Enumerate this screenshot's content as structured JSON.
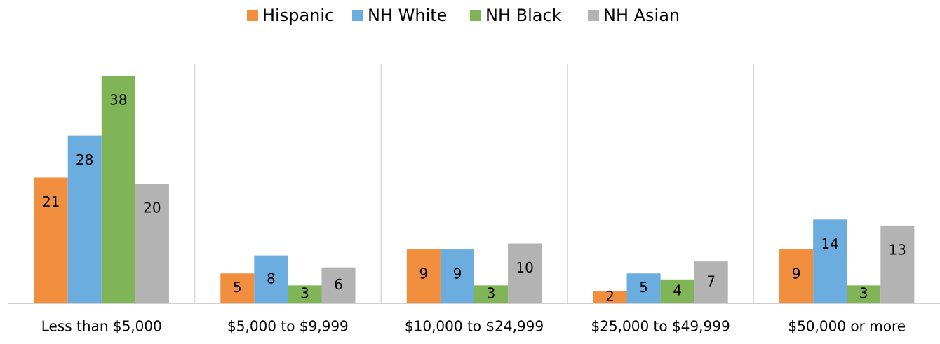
{
  "chart_data": {
    "type": "bar",
    "categories": [
      "Less than $5,000",
      "$5,000 to $9,999",
      "$10,000 to $24,999",
      "$25,000 to $49,999",
      "$50,000 or more"
    ],
    "series": [
      {
        "name": "Hispanic",
        "color": "#f28f3f",
        "values": [
          21,
          5,
          9,
          2,
          9
        ]
      },
      {
        "name": "NH White",
        "color": "#6badde",
        "values": [
          28,
          8,
          9,
          5,
          14
        ]
      },
      {
        "name": "NH Black",
        "color": "#80b557",
        "values": [
          38,
          3,
          3,
          4,
          3
        ]
      },
      {
        "name": "NH Asian",
        "color": "#b3b3b3",
        "values": [
          20,
          6,
          10,
          7,
          13
        ]
      }
    ],
    "ylim": [
      0,
      40
    ],
    "legend": "top"
  }
}
